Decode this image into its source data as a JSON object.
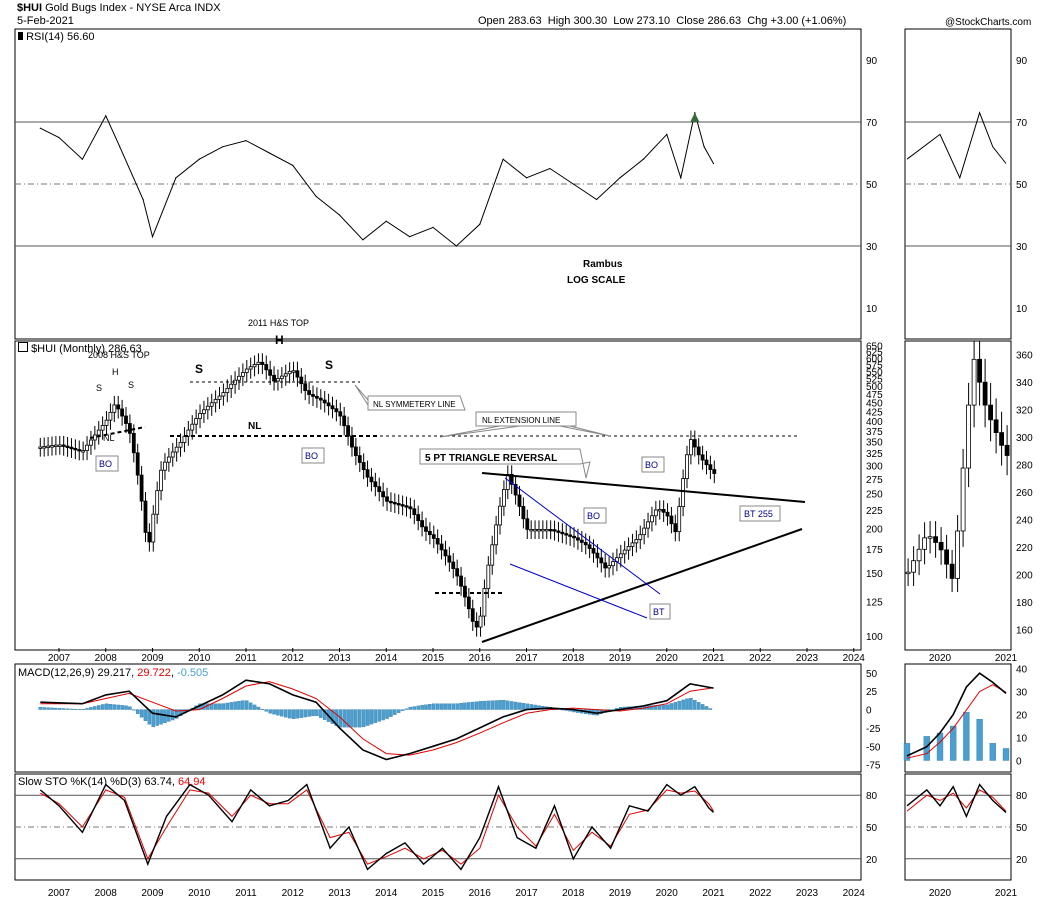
{
  "header": {
    "symbol": "$HUI",
    "name": "Gold Bugs Index - NYSE Arca INDX",
    "date": "5-Feb-2021",
    "ohlc": "Open 283.63  High 300.30  Low 273.10  Close 286.63  Chg +3.00 (+1.06%)",
    "open_label": "Open",
    "open": "283.63",
    "high_label": "High",
    "high": "300.30",
    "low_label": "Low",
    "low": "273.10",
    "close_label": "Close",
    "close": "286.63",
    "chg_label": "Chg",
    "chg": "+3.00 (+1.06%)",
    "credit": "@StockCharts.com"
  },
  "colors": {
    "price": "#000000",
    "macd_signal": "#e00000",
    "histogram": "#4a9fd0",
    "wedge": "#0000cc",
    "rsi_fill": "#3a6a3a",
    "grid": "#808080"
  },
  "annotations": {
    "rambus": "Rambus",
    "log_scale": "LOG SCALE",
    "hs_2011": "2011 H&S TOP",
    "hs_2008": "2008 H&S TOP",
    "h": "H",
    "s": "S",
    "nl": "NL",
    "bo": "BO",
    "bt": "BT",
    "nl_symmetry": "NL SYMMETERY LINE",
    "nl_extension": "NL EXTENSION LINE",
    "triangle": "5 PT TRIANGLE REVERSAL",
    "bt255": "BT 255"
  },
  "rsi_panel": {
    "label": "RSI(14) 56.60",
    "levels": [
      "90",
      "70",
      "50",
      "30",
      "10"
    ]
  },
  "price_panel": {
    "label": "$HUI (Monthly) 286.63",
    "ticks": [
      "650",
      "625",
      "600",
      "575",
      "550",
      "525",
      "500",
      "475",
      "450",
      "425",
      "400",
      "375",
      "350",
      "325",
      "300",
      "275",
      "250",
      "225",
      "200",
      "175",
      "150",
      "125",
      "100"
    ]
  },
  "macd_panel": {
    "label_name": "MACD(12,26,9)",
    "macd": "29.217",
    "signal": "29.722",
    "hist": "-0.505",
    "ticks": [
      "50",
      "25",
      "0",
      "-25",
      "-50",
      "-75"
    ]
  },
  "sto_panel": {
    "label_name": "Slow STO %K(14) %D(3)",
    "k": "63.74",
    "d": "64.94",
    "levels": [
      "80",
      "50",
      "20"
    ]
  },
  "side_panel": {
    "price_ticks": [
      "360",
      "340",
      "320",
      "300",
      "280",
      "260",
      "240",
      "220",
      "200",
      "180",
      "160"
    ],
    "macd_ticks": [
      "40",
      "30",
      "20",
      "10",
      "0"
    ],
    "rsi_levels": [
      "90",
      "70",
      "50",
      "30",
      "10"
    ],
    "sto_levels": [
      "80",
      "50",
      "20"
    ],
    "years": [
      "2020",
      "2021"
    ]
  },
  "years": [
    "2007",
    "2008",
    "2009",
    "2010",
    "2011",
    "2012",
    "2013",
    "2014",
    "2015",
    "2016",
    "2017",
    "2018",
    "2019",
    "2020",
    "2021",
    "2022",
    "2023",
    "2024"
  ],
  "chart_data": [
    {
      "type": "line",
      "title": "RSI(14) 56.60",
      "ylim": [
        0,
        100
      ],
      "x": [
        2006.6,
        2007.0,
        2007.5,
        2008.0,
        2008.3,
        2008.8,
        2009.0,
        2009.5,
        2010.0,
        2010.5,
        2011.0,
        2011.5,
        2012.0,
        2012.5,
        2013.0,
        2013.5,
        2014.0,
        2014.5,
        2015.0,
        2015.5,
        2016.0,
        2016.5,
        2017.0,
        2017.5,
        2018.0,
        2018.5,
        2019.0,
        2019.5,
        2020.0,
        2020.3,
        2020.6,
        2020.8,
        2021.0
      ],
      "values": [
        68,
        65,
        58,
        72,
        62,
        45,
        33,
        52,
        58,
        62,
        64,
        60,
        56,
        46,
        40,
        32,
        38,
        33,
        36,
        30,
        37,
        58,
        52,
        55,
        50,
        45,
        52,
        58,
        66,
        52,
        73,
        62,
        56.6
      ]
    },
    {
      "type": "line",
      "title": "$HUI (Monthly) 286.63",
      "y_scale": "log",
      "ylim": [
        95,
        660
      ],
      "x": [
        2006.6,
        2007.0,
        2007.5,
        2008.0,
        2008.2,
        2008.5,
        2008.9,
        2009.2,
        2009.6,
        2010.0,
        2010.5,
        2011.0,
        2011.3,
        2011.6,
        2012.0,
        2012.3,
        2012.6,
        2013.0,
        2013.3,
        2013.6,
        2014.0,
        2014.5,
        2014.8,
        2015.0,
        2015.5,
        2015.9,
        2016.0,
        2016.3,
        2016.6,
        2017.0,
        2017.5,
        2018.0,
        2018.3,
        2018.7,
        2019.0,
        2019.4,
        2019.8,
        2020.0,
        2020.2,
        2020.5,
        2020.7,
        2021.0
      ],
      "values": [
        340,
        345,
        330,
        400,
        450,
        380,
        170,
        300,
        350,
        420,
        480,
        560,
        590,
        520,
        560,
        480,
        460,
        420,
        330,
        280,
        240,
        230,
        200,
        190,
        150,
        105,
        110,
        190,
        285,
        200,
        200,
        190,
        180,
        155,
        170,
        190,
        230,
        220,
        195,
        360,
        320,
        286.63
      ]
    },
    {
      "type": "line",
      "title": "MACD(12,26,9) 29.217, 29.722, -0.505",
      "ylim": [
        -80,
        60
      ],
      "x": [
        2006.6,
        2007.5,
        2008.0,
        2008.5,
        2009.0,
        2009.5,
        2010.0,
        2010.5,
        2011.0,
        2011.5,
        2012.0,
        2012.5,
        2013.0,
        2013.5,
        2014.0,
        2014.5,
        2015.0,
        2015.5,
        2016.0,
        2016.5,
        2017.0,
        2017.5,
        2018.0,
        2018.5,
        2019.0,
        2019.5,
        2020.0,
        2020.5,
        2021.0
      ],
      "series": [
        {
          "name": "MACD",
          "values": [
            10,
            8,
            20,
            25,
            -5,
            -10,
            5,
            20,
            40,
            35,
            20,
            10,
            -25,
            -55,
            -68,
            -60,
            -50,
            -40,
            -25,
            -10,
            0,
            2,
            0,
            -5,
            0,
            5,
            12,
            35,
            29.217
          ]
        },
        {
          "name": "Signal",
          "values": [
            8,
            8,
            15,
            22,
            10,
            -2,
            0,
            15,
            32,
            38,
            28,
            15,
            -10,
            -40,
            -60,
            -62,
            -55,
            -45,
            -32,
            -18,
            -5,
            0,
            2,
            0,
            -2,
            2,
            8,
            25,
            29.722
          ]
        }
      ]
    },
    {
      "type": "line",
      "title": "Slow STO %K(14) %D(3) 63.74, 64.94",
      "ylim": [
        0,
        100
      ],
      "x": [
        2006.6,
        2007.0,
        2007.5,
        2008.0,
        2008.4,
        2008.9,
        2009.3,
        2009.8,
        2010.2,
        2010.7,
        2011.1,
        2011.5,
        2011.9,
        2012.3,
        2012.8,
        2013.2,
        2013.6,
        2014.0,
        2014.4,
        2014.8,
        2015.2,
        2015.6,
        2016.0,
        2016.4,
        2016.8,
        2017.2,
        2017.6,
        2018.0,
        2018.4,
        2018.8,
        2019.2,
        2019.6,
        2020.0,
        2020.3,
        2020.6,
        2020.9,
        2021.0
      ],
      "series": [
        {
          "name": "%K",
          "values": [
            85,
            70,
            45,
            90,
            75,
            15,
            60,
            90,
            80,
            55,
            85,
            70,
            75,
            90,
            30,
            50,
            10,
            25,
            35,
            15,
            30,
            10,
            40,
            88,
            40,
            30,
            70,
            20,
            50,
            30,
            70,
            65,
            90,
            80,
            88,
            68,
            63.74
          ]
        },
        {
          "name": "%D",
          "values": [
            82,
            72,
            50,
            85,
            78,
            20,
            50,
            85,
            82,
            60,
            80,
            72,
            72,
            85,
            40,
            45,
            15,
            22,
            30,
            20,
            28,
            15,
            30,
            80,
            50,
            32,
            62,
            28,
            45,
            32,
            62,
            66,
            85,
            82,
            84,
            72,
            64.94
          ]
        }
      ]
    }
  ]
}
